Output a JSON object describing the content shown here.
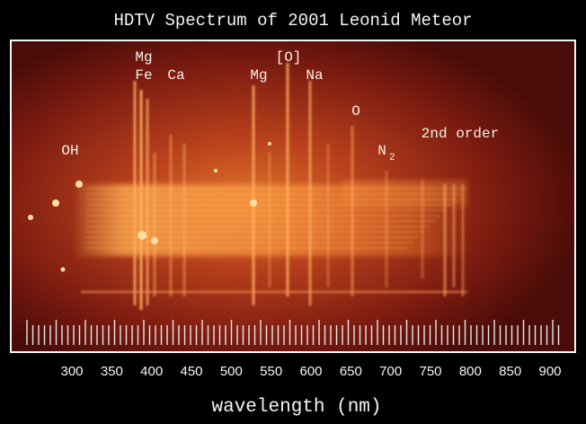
{
  "title": "HDTV Spectrum of 2001 Leonid Meteor",
  "annotations": [
    {
      "text": "Mg"
    },
    {
      "text": "Fe"
    },
    {
      "text": "Ca"
    },
    {
      "text": "Mg"
    },
    {
      "text": "[O]"
    },
    {
      "text": "Na"
    },
    {
      "text": "O"
    },
    {
      "text": "N",
      "sub": "2"
    },
    {
      "text": "OH"
    },
    {
      "text": "2nd order"
    }
  ],
  "scale": {
    "ticks": [
      300,
      350,
      400,
      450,
      500,
      550,
      600,
      650,
      700,
      750,
      800,
      850,
      900
    ],
    "label": "wavelength (nm)"
  }
}
